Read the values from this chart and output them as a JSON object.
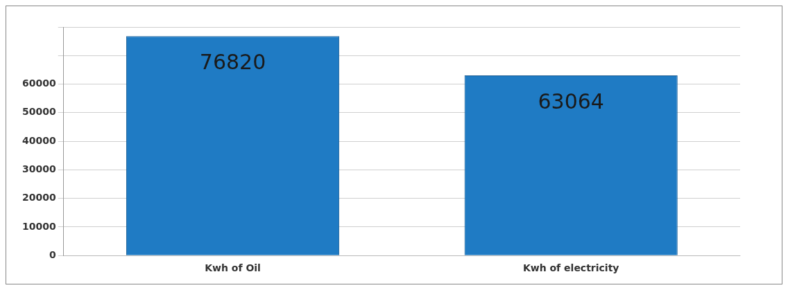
{
  "chart_data": {
    "type": "bar",
    "categories": [
      "Kwh of Oil",
      "Kwh of electricity"
    ],
    "values": [
      76820,
      63064
    ],
    "color": "#1f7bc4",
    "ylim": [
      0,
      80000
    ],
    "yticks": [
      0,
      10000,
      20000,
      30000,
      40000,
      50000,
      60000,
      {
        "value": 70000,
        "label": null
      },
      {
        "value": 80000,
        "label": null
      }
    ],
    "grid": "y",
    "data_labels": true
  }
}
